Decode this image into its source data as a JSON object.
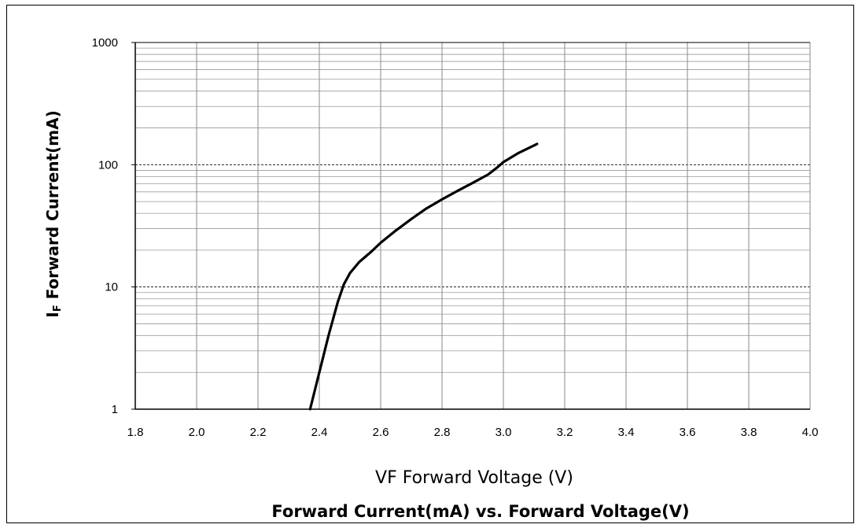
{
  "chart_data": {
    "type": "line",
    "title": "Forward Current(mA) vs. Forward Voltage(V)",
    "xlabel": "VF Forward Voltage (V)",
    "ylabel_main": "I",
    "ylabel_sub": "F",
    "ylabel_rest": " Forward Current(mA)",
    "x_scale": "linear",
    "y_scale": "log",
    "xlim": [
      1.8,
      4.0
    ],
    "ylim": [
      1,
      1000
    ],
    "x_ticks": [
      "1.8",
      "2.0",
      "2.2",
      "2.4",
      "2.6",
      "2.8",
      "3.0",
      "3.2",
      "3.4",
      "3.6",
      "3.8",
      "4.0"
    ],
    "y_ticks": [
      "1",
      "10",
      "100",
      "1000"
    ],
    "grid": true,
    "series": [
      {
        "color": "#000000",
        "x": [
          2.37,
          2.4,
          2.43,
          2.46,
          2.48,
          2.5,
          2.53,
          2.57,
          2.6,
          2.65,
          2.7,
          2.75,
          2.8,
          2.85,
          2.9,
          2.95,
          2.98,
          3.0,
          3.05,
          3.11
        ],
        "y": [
          1,
          2,
          4,
          7.5,
          10.5,
          13,
          16,
          19.5,
          23,
          29,
          36,
          44,
          52,
          61,
          71,
          83,
          95,
          105,
          125,
          148
        ]
      }
    ]
  }
}
